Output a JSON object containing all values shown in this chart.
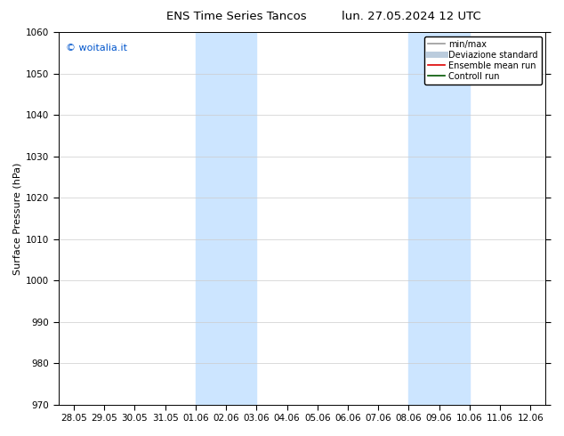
{
  "title_left": "ENS Time Series Tancos",
  "title_right": "lun. 27.05.2024 12 UTC",
  "ylabel": "Surface Pressure (hPa)",
  "ylim": [
    970,
    1060
  ],
  "yticks": [
    970,
    980,
    990,
    1000,
    1010,
    1020,
    1030,
    1040,
    1050,
    1060
  ],
  "xtick_labels": [
    "28.05",
    "29.05",
    "30.05",
    "31.05",
    "01.06",
    "02.06",
    "03.06",
    "04.06",
    "05.06",
    "06.06",
    "07.06",
    "08.06",
    "09.06",
    "10.06",
    "11.06",
    "12.06"
  ],
  "watermark": "© woitalia.it",
  "watermark_color": "#0055cc",
  "background_color": "#ffffff",
  "plot_bg_color": "#ffffff",
  "shaded_regions": [
    {
      "x_start": "01.06",
      "x_end": "03.06",
      "color": "#cce5ff"
    },
    {
      "x_start": "08.06",
      "x_end": "10.06",
      "color": "#cce5ff"
    }
  ],
  "legend_entries": [
    {
      "label": "min/max",
      "color": "#999999",
      "lw": 1.2,
      "style": "solid"
    },
    {
      "label": "Deviazione standard",
      "color": "#bbccdd",
      "lw": 5,
      "style": "solid"
    },
    {
      "label": "Ensemble mean run",
      "color": "#dd0000",
      "lw": 1.2,
      "style": "solid"
    },
    {
      "label": "Controll run",
      "color": "#005500",
      "lw": 1.2,
      "style": "solid"
    }
  ],
  "title_fontsize": 9.5,
  "tick_fontsize": 7.5,
  "ylabel_fontsize": 8,
  "watermark_fontsize": 8,
  "legend_fontsize": 7
}
